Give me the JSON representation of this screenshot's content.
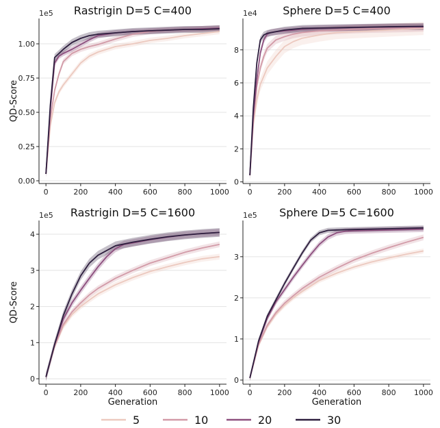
{
  "series_style": {
    "5": {
      "color": "#ecc9bf"
    },
    "10": {
      "color": "#d29aa7"
    },
    "20": {
      "color": "#8d4f7e"
    },
    "30": {
      "color": "#2d1e3e"
    }
  },
  "legend": {
    "labels": [
      "5",
      "10",
      "20",
      "30"
    ]
  },
  "chart_data": [
    {
      "type": "line",
      "title": "Rastrigin D=5 C=400",
      "xlabel": "",
      "ylabel": "QD-Score",
      "exponent_label": "1e5",
      "xlim": [
        -40,
        1040
      ],
      "ylim": [
        -0.02,
        1.185
      ],
      "xticks": [
        0,
        200,
        400,
        600,
        800,
        1000
      ],
      "yticks": [
        0.0,
        0.25,
        0.5,
        0.75,
        1.0
      ],
      "ytick_labels": [
        "0.00",
        "0.25",
        "0.50",
        "0.75",
        "1.00"
      ],
      "series": [
        {
          "key": "5",
          "x": [
            0,
            25,
            50,
            75,
            100,
            150,
            200,
            250,
            300,
            400,
            500,
            600,
            700,
            800,
            900,
            1000
          ],
          "y": [
            0.05,
            0.4,
            0.57,
            0.65,
            0.7,
            0.78,
            0.86,
            0.91,
            0.94,
            0.98,
            1.0,
            1.025,
            1.04,
            1.06,
            1.075,
            1.09
          ],
          "band": 0.02
        },
        {
          "key": "10",
          "x": [
            0,
            25,
            50,
            75,
            100,
            150,
            200,
            250,
            300,
            400,
            500,
            600,
            700,
            800,
            900,
            1000
          ],
          "y": [
            0.05,
            0.45,
            0.66,
            0.78,
            0.87,
            0.93,
            0.96,
            0.98,
            0.995,
            1.035,
            1.07,
            1.09,
            1.1,
            1.105,
            1.11,
            1.115
          ],
          "band": 0.02
        },
        {
          "key": "20",
          "x": [
            0,
            25,
            50,
            75,
            100,
            150,
            200,
            250,
            300,
            400,
            500,
            600,
            700,
            800,
            900,
            1000
          ],
          "y": [
            0.05,
            0.52,
            0.86,
            0.91,
            0.93,
            0.96,
            0.995,
            1.03,
            1.06,
            1.08,
            1.09,
            1.095,
            1.1,
            1.105,
            1.11,
            1.115
          ],
          "band": 0.02
        },
        {
          "key": "30",
          "x": [
            0,
            25,
            50,
            75,
            100,
            150,
            200,
            250,
            300,
            400,
            500,
            600,
            700,
            800,
            900,
            1000
          ],
          "y": [
            0.05,
            0.55,
            0.9,
            0.93,
            0.96,
            1.01,
            1.04,
            1.06,
            1.07,
            1.08,
            1.09,
            1.095,
            1.1,
            1.105,
            1.105,
            1.11
          ],
          "band": 0.025
        }
      ]
    },
    {
      "type": "line",
      "title": "Sphere D=5 C=400",
      "xlabel": "",
      "ylabel": "",
      "exponent_label": "1e4",
      "xlim": [
        -40,
        1040
      ],
      "ylim": [
        -0.1,
        9.9
      ],
      "xticks": [
        0,
        200,
        400,
        600,
        800,
        1000
      ],
      "yticks": [
        0,
        2,
        4,
        6,
        8
      ],
      "ytick_labels": [
        "0",
        "2",
        "4",
        "6",
        "8"
      ],
      "series": [
        {
          "key": "5",
          "x": [
            0,
            20,
            40,
            60,
            80,
            100,
            150,
            200,
            250,
            300,
            400,
            500,
            600,
            700,
            800,
            900,
            1000
          ],
          "y": [
            0.4,
            3.5,
            5.0,
            5.9,
            6.4,
            6.9,
            7.6,
            8.2,
            8.5,
            8.7,
            8.9,
            9.05,
            9.1,
            9.15,
            9.2,
            9.25,
            9.3
          ],
          "band": 0.4
        },
        {
          "key": "10",
          "x": [
            0,
            20,
            40,
            60,
            80,
            100,
            150,
            200,
            250,
            300,
            400,
            500,
            600,
            700,
            800,
            900,
            1000
          ],
          "y": [
            0.4,
            3.8,
            5.8,
            6.9,
            7.6,
            8.1,
            8.6,
            8.8,
            8.95,
            9.05,
            9.15,
            9.2,
            9.25,
            9.28,
            9.3,
            9.32,
            9.35
          ],
          "band": 0.25
        },
        {
          "key": "20",
          "x": [
            0,
            20,
            40,
            60,
            80,
            100,
            120,
            150,
            200,
            250,
            300,
            400,
            500,
            600,
            700,
            800,
            900,
            1000
          ],
          "y": [
            0.4,
            4.0,
            6.2,
            7.8,
            8.6,
            8.95,
            9.05,
            9.1,
            9.15,
            9.2,
            9.25,
            9.3,
            9.32,
            9.35,
            9.37,
            9.38,
            9.4,
            9.4
          ],
          "band": 0.2
        },
        {
          "key": "30",
          "x": [
            0,
            20,
            40,
            60,
            80,
            100,
            150,
            200,
            250,
            300,
            400,
            500,
            600,
            700,
            800,
            900,
            1000
          ],
          "y": [
            0.4,
            4.5,
            7.2,
            8.6,
            8.9,
            9.0,
            9.1,
            9.2,
            9.25,
            9.3,
            9.32,
            9.34,
            9.36,
            9.38,
            9.4,
            9.41,
            9.42
          ],
          "band": 0.2
        }
      ]
    },
    {
      "type": "line",
      "title": "Rastrigin D=5 C=1600",
      "xlabel": "Generation",
      "ylabel": "QD-Score",
      "exponent_label": "1e5",
      "xlim": [
        -40,
        1040
      ],
      "ylim": [
        -0.15,
        4.38
      ],
      "xticks": [
        0,
        200,
        400,
        600,
        800,
        1000
      ],
      "yticks": [
        0,
        1,
        2,
        3,
        4
      ],
      "ytick_labels": [
        "0",
        "1",
        "2",
        "3",
        "4"
      ],
      "series": [
        {
          "key": "5",
          "x": [
            0,
            50,
            100,
            150,
            200,
            250,
            300,
            400,
            500,
            600,
            700,
            800,
            900,
            1000
          ],
          "y": [
            0.05,
            0.9,
            1.45,
            1.78,
            2.0,
            2.18,
            2.35,
            2.6,
            2.8,
            2.97,
            3.1,
            3.22,
            3.32,
            3.38
          ],
          "band": 0.08
        },
        {
          "key": "10",
          "x": [
            0,
            50,
            100,
            150,
            200,
            250,
            300,
            400,
            500,
            600,
            700,
            800,
            900,
            1000
          ],
          "y": [
            0.05,
            0.9,
            1.5,
            1.85,
            2.1,
            2.32,
            2.5,
            2.78,
            3.0,
            3.2,
            3.35,
            3.5,
            3.62,
            3.72
          ],
          "band": 0.08
        },
        {
          "key": "20",
          "x": [
            0,
            50,
            100,
            150,
            200,
            250,
            300,
            350,
            400,
            450,
            500,
            600,
            700,
            800,
            900,
            1000
          ],
          "y": [
            0.05,
            0.95,
            1.65,
            2.1,
            2.45,
            2.78,
            3.1,
            3.38,
            3.6,
            3.72,
            3.76,
            3.85,
            3.92,
            3.98,
            4.02,
            4.05
          ],
          "band": 0.1
        },
        {
          "key": "30",
          "x": [
            0,
            50,
            100,
            150,
            200,
            250,
            300,
            400,
            500,
            600,
            700,
            800,
            900,
            1000
          ],
          "y": [
            0.05,
            0.95,
            1.75,
            2.35,
            2.85,
            3.2,
            3.42,
            3.68,
            3.78,
            3.86,
            3.93,
            3.98,
            4.02,
            4.05
          ],
          "band": 0.12
        }
      ]
    },
    {
      "type": "line",
      "title": "Sphere D=5 C=1600",
      "xlabel": "Generation",
      "ylabel": "",
      "exponent_label": "1e5",
      "xlim": [
        -40,
        1040
      ],
      "ylim": [
        -0.1,
        3.88
      ],
      "xticks": [
        0,
        200,
        400,
        600,
        800,
        1000
      ],
      "yticks": [
        0,
        1,
        2,
        3
      ],
      "ytick_labels": [
        "0",
        "1",
        "2",
        "3"
      ],
      "series": [
        {
          "key": "5",
          "x": [
            0,
            50,
            100,
            150,
            200,
            250,
            300,
            400,
            500,
            600,
            700,
            800,
            900,
            1000
          ],
          "y": [
            0.05,
            0.85,
            1.3,
            1.6,
            1.82,
            2.0,
            2.15,
            2.42,
            2.6,
            2.75,
            2.87,
            2.97,
            3.06,
            3.14
          ],
          "band": 0.06
        },
        {
          "key": "10",
          "x": [
            0,
            50,
            100,
            150,
            200,
            250,
            300,
            400,
            500,
            600,
            700,
            800,
            900,
            1000
          ],
          "y": [
            0.05,
            0.87,
            1.33,
            1.64,
            1.87,
            2.05,
            2.22,
            2.5,
            2.72,
            2.92,
            3.08,
            3.22,
            3.35,
            3.47
          ],
          "band": 0.07
        },
        {
          "key": "20",
          "x": [
            0,
            50,
            100,
            150,
            200,
            250,
            300,
            350,
            400,
            450,
            500,
            550,
            600,
            800,
            1000
          ],
          "y": [
            0.05,
            0.92,
            1.5,
            1.9,
            2.2,
            2.5,
            2.78,
            3.05,
            3.3,
            3.48,
            3.58,
            3.62,
            3.63,
            3.65,
            3.67
          ],
          "band": 0.07
        },
        {
          "key": "30",
          "x": [
            0,
            50,
            100,
            150,
            200,
            250,
            300,
            350,
            400,
            450,
            500,
            600,
            800,
            1000
          ],
          "y": [
            0.05,
            0.95,
            1.55,
            1.95,
            2.35,
            2.72,
            3.08,
            3.4,
            3.58,
            3.64,
            3.65,
            3.66,
            3.68,
            3.7
          ],
          "band": 0.06
        }
      ]
    }
  ]
}
